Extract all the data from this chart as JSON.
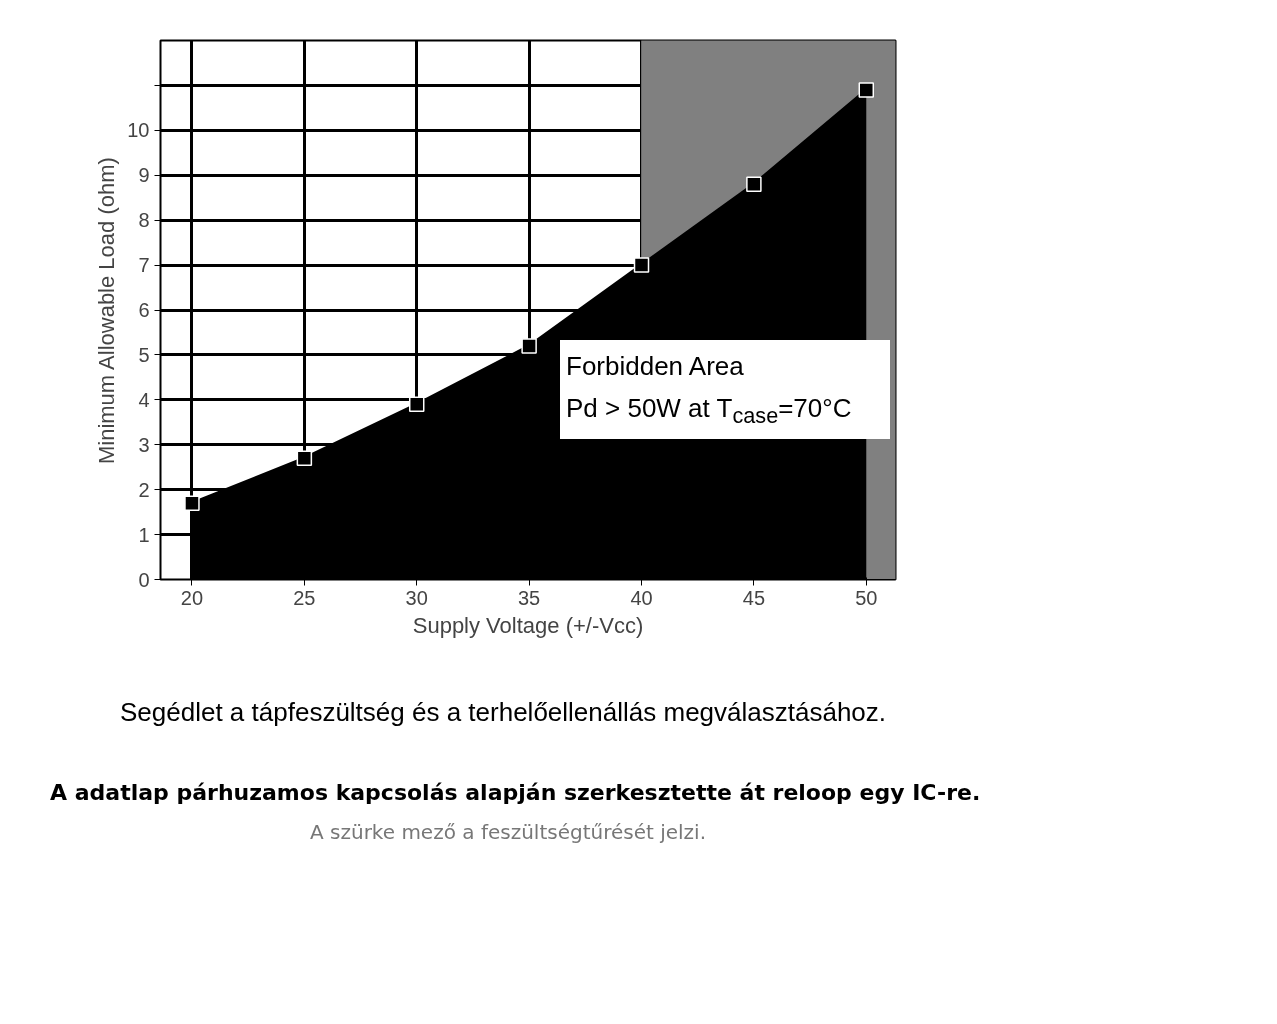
{
  "chart_data": {
    "type": "area",
    "xlabel": "Supply Voltage (+/-Vcc)",
    "ylabel": "Minimum Allowable Load (ohm)",
    "x": [
      20,
      25,
      30,
      35,
      40,
      45,
      50
    ],
    "series": [
      {
        "color": "#000000",
        "values": [
          1.7,
          2.7,
          3.9,
          5.2,
          7.0,
          8.8,
          10.9
        ]
      }
    ],
    "marker": "square",
    "grid": true,
    "xlim": [
      18.6,
      51.3
    ],
    "ylim": [
      0,
      12
    ],
    "xticks": [
      20,
      25,
      30,
      35,
      40,
      45,
      50
    ],
    "yticks": [
      0,
      1,
      2,
      3,
      4,
      5,
      6,
      7,
      8,
      9,
      10,
      {
        "value": 11,
        "label": null
      }
    ],
    "bands": [
      {
        "axis": "x",
        "from": 40,
        "to": 51.3,
        "color": "#808080"
      }
    ],
    "annotations": [
      "Forbidden Area",
      "Pd > 50W at T$_{case}$=70°C",
      "Segédlet a tápfeszültség és a terhelőellenállás megválasztásához.",
      "A adatlap párhuzamos kapcsolás alapján szerkesztette át reloop egy IC-re.",
      "A szürke mező a feszültségtűrését jelzi."
    ]
  }
}
